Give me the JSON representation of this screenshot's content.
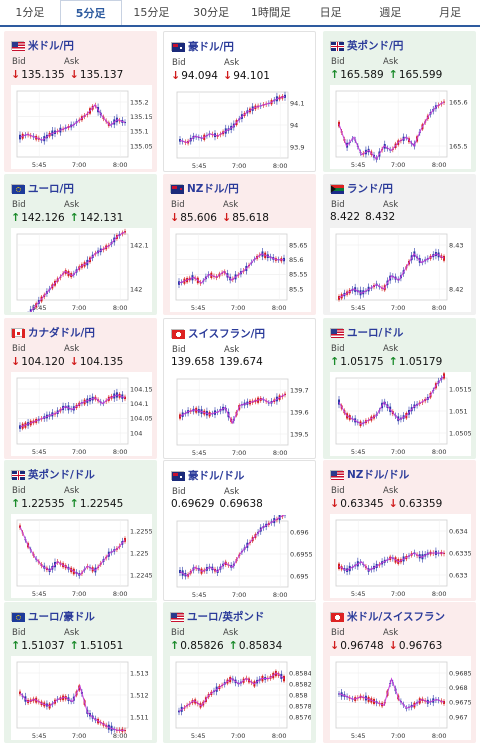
{
  "tabs": [
    "1分足",
    "5分足",
    "15分足",
    "30分足",
    "1時間足",
    "日足",
    "週足",
    "月足"
  ],
  "active_tab": 1,
  "labels": {
    "bid": "Bid",
    "ask": "Ask"
  },
  "cards": [
    {
      "pair": "米ドル/円",
      "bg": "down",
      "dir": "down",
      "bid": "135.135",
      "ask": "135.137",
      "flag": "us",
      "yticks": [
        "135.2",
        "135.15",
        "135.1",
        "135.05"
      ],
      "xticks": [
        "5:45",
        "7:00",
        "8:00"
      ],
      "trend": [
        135.08,
        135.09,
        135.08,
        135.07,
        135.09,
        135.1,
        135.11,
        135.12,
        135.14,
        135.16,
        135.19,
        135.15,
        135.12,
        135.14,
        135.13
      ]
    },
    {
      "pair": "豪ドル/円",
      "bg": "white",
      "dir": "down",
      "bid": "94.094",
      "ask": "94.101",
      "flag": "au",
      "yticks": [
        "94.1",
        "94",
        "93.9"
      ],
      "xticks": [
        "5:45",
        "7:00",
        "8:00"
      ],
      "trend": [
        93.93,
        93.92,
        93.95,
        93.94,
        93.96,
        93.95,
        93.97,
        93.99,
        94.03,
        94.06,
        94.08,
        94.09,
        94.1,
        94.12,
        94.13
      ]
    },
    {
      "pair": "英ポンド/円",
      "bg": "up",
      "dir": "up",
      "bid": "165.589",
      "ask": "165.599",
      "flag": "gb",
      "yticks": [
        "165.6",
        "165.5"
      ],
      "xticks": [
        "5:45",
        "7:00",
        "8:00"
      ],
      "trend": [
        165.55,
        165.5,
        165.52,
        165.48,
        165.49,
        165.47,
        165.5,
        165.49,
        165.51,
        165.52,
        165.5,
        165.54,
        165.57,
        165.59,
        165.6
      ]
    },
    {
      "pair": "ユーロ/円",
      "bg": "up",
      "dir": "up",
      "bid": "142.126",
      "ask": "142.131",
      "flag": "eu",
      "yticks": [
        "142.1",
        "142"
      ],
      "xticks": [
        "5:45",
        "7:00",
        "8:00"
      ],
      "trend": [
        141.92,
        141.94,
        141.96,
        141.98,
        142.0,
        142.02,
        142.04,
        142.03,
        142.05,
        142.06,
        142.08,
        142.09,
        142.1,
        142.12,
        142.13
      ]
    },
    {
      "pair": "NZドル/円",
      "bg": "down",
      "dir": "down",
      "bid": "85.606",
      "ask": "85.618",
      "flag": "nz",
      "yticks": [
        "85.65",
        "85.6",
        "85.55",
        "85.5"
      ],
      "xticks": [
        "5:45",
        "7:00",
        "8:00"
      ],
      "trend": [
        85.52,
        85.53,
        85.54,
        85.52,
        85.55,
        85.54,
        85.56,
        85.53,
        85.55,
        85.57,
        85.6,
        85.62,
        85.61,
        85.6,
        85.6
      ]
    },
    {
      "pair": "ランド/円",
      "bg": "flat",
      "dir": "none",
      "bid": "8.422",
      "ask": "8.432",
      "flag": "za",
      "yticks": [
        "8.43",
        "8.42"
      ],
      "xticks": [
        "5:45",
        "7:00",
        "8:00"
      ],
      "trend": [
        8.418,
        8.419,
        8.42,
        8.419,
        8.42,
        8.421,
        8.42,
        8.423,
        8.422,
        8.425,
        8.428,
        8.426,
        8.427,
        8.428,
        8.427
      ]
    },
    {
      "pair": "カナダドル/円",
      "bg": "down",
      "dir": "down",
      "bid": "104.120",
      "ask": "104.135",
      "flag": "ca",
      "yticks": [
        "104.15",
        "104.1",
        "104.05",
        "104"
      ],
      "xticks": [
        "5:45",
        "7:00",
        "8:00"
      ],
      "trend": [
        104.02,
        104.03,
        104.04,
        104.05,
        104.06,
        104.07,
        104.09,
        104.08,
        104.1,
        104.11,
        104.12,
        104.1,
        104.12,
        104.13,
        104.12
      ]
    },
    {
      "pair": "スイスフラン/円",
      "bg": "white",
      "dir": "none",
      "bid": "139.658",
      "ask": "139.674",
      "flag": "ch",
      "yticks": [
        "139.7",
        "139.6",
        "139.5"
      ],
      "xticks": [
        "5:45",
        "7:00",
        "8:00"
      ],
      "trend": [
        139.58,
        139.6,
        139.61,
        139.6,
        139.59,
        139.6,
        139.62,
        139.55,
        139.63,
        139.64,
        139.65,
        139.66,
        139.64,
        139.66,
        139.68
      ]
    },
    {
      "pair": "ユーロ/ドル",
      "bg": "up",
      "dir": "up",
      "bid": "1.05175",
      "ask": "1.05179",
      "flag": "us",
      "yticks": [
        "1.0515",
        "1.051",
        "1.0505"
      ],
      "xticks": [
        "5:45",
        "7:00",
        "8:00"
      ],
      "trend": [
        1.0512,
        1.0509,
        1.0508,
        1.0507,
        1.0508,
        1.0509,
        1.0512,
        1.051,
        1.0508,
        1.0509,
        1.0511,
        1.0512,
        1.0513,
        1.0516,
        1.0518
      ]
    },
    {
      "pair": "英ポンド/ドル",
      "bg": "up",
      "dir": "up",
      "bid": "1.22535",
      "ask": "1.22545",
      "flag": "gb",
      "yticks": [
        "1.2255",
        "1.225",
        "1.2245"
      ],
      "xticks": [
        "5:45",
        "7:00",
        "8:00"
      ],
      "trend": [
        1.2256,
        1.2252,
        1.2249,
        1.2247,
        1.2246,
        1.2248,
        1.2247,
        1.2246,
        1.2245,
        1.2247,
        1.2246,
        1.2248,
        1.225,
        1.2251,
        1.2253
      ]
    },
    {
      "pair": "豪ドル/ドル",
      "bg": "white",
      "dir": "none",
      "bid": "0.69629",
      "ask": "0.69638",
      "flag": "au",
      "yticks": [
        "0.696",
        "0.6955",
        "0.695"
      ],
      "xticks": [
        "5:45",
        "7:00",
        "8:00"
      ],
      "trend": [
        0.6951,
        0.695,
        0.6952,
        0.6951,
        0.6952,
        0.6951,
        0.6953,
        0.6952,
        0.6955,
        0.6957,
        0.6959,
        0.6961,
        0.6962,
        0.6963,
        0.6964
      ]
    },
    {
      "pair": "NZドル/ドル",
      "bg": "down",
      "dir": "down",
      "bid": "0.63345",
      "ask": "0.63359",
      "flag": "us",
      "yticks": [
        "0.634",
        "0.6335",
        "0.633"
      ],
      "xticks": [
        "5:45",
        "7:00",
        "8:00"
      ],
      "trend": [
        0.6332,
        0.6331,
        0.6332,
        0.6333,
        0.6331,
        0.6332,
        0.6333,
        0.6334,
        0.6333,
        0.6334,
        0.6335,
        0.6334,
        0.6335,
        0.6335,
        0.6335
      ]
    },
    {
      "pair": "ユーロ/豪ドル",
      "bg": "up",
      "dir": "up",
      "bid": "1.51037",
      "ask": "1.51051",
      "flag": "eu",
      "yticks": [
        "1.513",
        "1.512",
        "1.511"
      ],
      "xticks": [
        "5:45",
        "7:00",
        "8:00"
      ],
      "trend": [
        1.5121,
        1.5117,
        1.5118,
        1.5116,
        1.5115,
        1.5118,
        1.5119,
        1.5117,
        1.5124,
        1.5112,
        1.5109,
        1.5107,
        1.5105,
        1.5104,
        1.5104
      ]
    },
    {
      "pair": "ユーロ/英ポンド",
      "bg": "up",
      "dir": "up",
      "bid": "0.85826",
      "ask": "0.85834",
      "flag": "us",
      "yticks": [
        "0.8584",
        "0.8582",
        "0.858",
        "0.8578",
        "0.8576"
      ],
      "xticks": [
        "5:45",
        "7:00",
        "8:00"
      ],
      "trend": [
        0.8577,
        0.8578,
        0.8579,
        0.8578,
        0.858,
        0.8581,
        0.8582,
        0.8583,
        0.8582,
        0.8583,
        0.8582,
        0.8583,
        0.8583,
        0.8584,
        0.8583
      ]
    },
    {
      "pair": "米ドル/スイスフラン",
      "bg": "down",
      "dir": "down",
      "bid": "0.96748",
      "ask": "0.96763",
      "flag": "ch",
      "yticks": [
        "0.9685",
        "0.968",
        "0.9675",
        "0.967"
      ],
      "xticks": [
        "5:45",
        "7:00",
        "8:00"
      ],
      "trend": [
        0.9678,
        0.9677,
        0.9676,
        0.9677,
        0.9676,
        0.9675,
        0.9674,
        0.9683,
        0.9676,
        0.9673,
        0.9674,
        0.9676,
        0.9675,
        0.9676,
        0.9675
      ]
    }
  ]
}
